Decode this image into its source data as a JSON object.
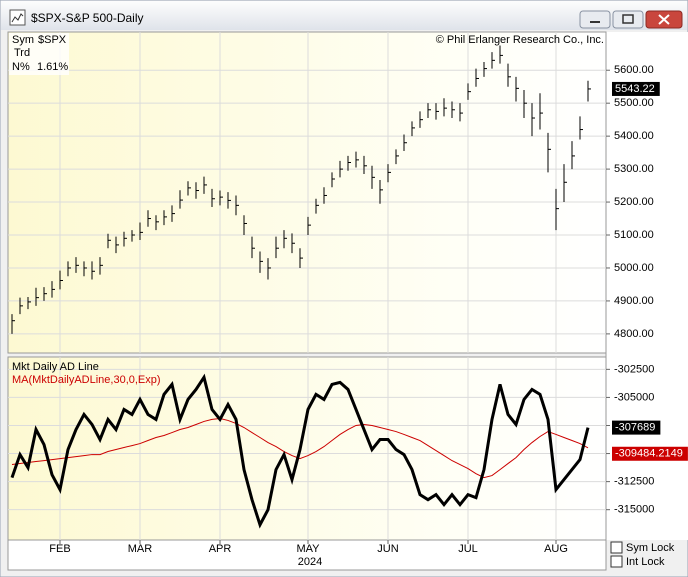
{
  "window": {
    "title": "$SPX-S&P 500-Daily",
    "copyright": "© Phil Erlanger Research Co., Inc.",
    "info": {
      "sym_label": "Sym",
      "sym": "$SPX",
      "trd_label": "Trd",
      "n_label": "N%",
      "n": "1.61%"
    },
    "year": "2024",
    "checkboxes": [
      "Sym Lock",
      "Int Lock"
    ]
  },
  "chart_data": [
    {
      "type": "hlc",
      "color": "#000000",
      "categories": [
        null,
        null,
        null,
        null,
        null,
        null,
        "FEB",
        null,
        null,
        null,
        null,
        null,
        null,
        null,
        null,
        null,
        "MAR",
        null,
        null,
        null,
        null,
        null,
        null,
        null,
        null,
        null,
        "APR",
        null,
        null,
        null,
        null,
        null,
        null,
        null,
        null,
        null,
        null,
        "MAY",
        null,
        null,
        null,
        null,
        null,
        null,
        null,
        null,
        null,
        "JUN",
        null,
        null,
        null,
        null,
        null,
        null,
        null,
        null,
        null,
        "JUL",
        null,
        null,
        null,
        null,
        null,
        null,
        null,
        null,
        null,
        null,
        "AUG",
        null,
        null,
        null,
        null
      ],
      "high": [
        4860,
        4910,
        4912,
        4940,
        4942,
        4960,
        4992,
        5020,
        5033,
        5020,
        5020,
        5033,
        5104,
        5095,
        5110,
        5115,
        5138,
        5175,
        5160,
        5175,
        5190,
        5236,
        5263,
        5260,
        5277,
        5240,
        5235,
        5230,
        5220,
        5160,
        5095,
        5050,
        5030,
        5095,
        5115,
        5105,
        5060,
        5155,
        5210,
        5245,
        5290,
        5325,
        5340,
        5353,
        5340,
        5310,
        5267,
        5315,
        5360,
        5405,
        5445,
        5475,
        5500,
        5500,
        5515,
        5505,
        5500,
        5560,
        5605,
        5625,
        5655,
        5675,
        5620,
        5580,
        5540,
        5500,
        5530,
        5410,
        5240,
        5315,
        5385,
        5460,
        5568
      ],
      "low": [
        4800,
        4860,
        4875,
        4885,
        4900,
        4910,
        4935,
        4975,
        4985,
        4975,
        4965,
        4980,
        5060,
        5045,
        5065,
        5080,
        5085,
        5125,
        5115,
        5130,
        5140,
        5180,
        5220,
        5210,
        5225,
        5185,
        5190,
        5180,
        5160,
        5100,
        5030,
        4985,
        4965,
        5030,
        5060,
        5045,
        5000,
        5100,
        5165,
        5195,
        5245,
        5275,
        5295,
        5305,
        5285,
        5240,
        5195,
        5260,
        5315,
        5355,
        5400,
        5425,
        5455,
        5450,
        5460,
        5455,
        5445,
        5510,
        5550,
        5580,
        5605,
        5620,
        5550,
        5505,
        5455,
        5400,
        5420,
        5290,
        5115,
        5200,
        5300,
        5390,
        5505
      ],
      "close": [
        4840,
        4885,
        4897,
        4910,
        4922,
        4935,
        4962,
        5000,
        5008,
        5000,
        4990,
        5008,
        5084,
        5070,
        5090,
        5100,
        5108,
        5150,
        5140,
        5155,
        5165,
        5206,
        5243,
        5235,
        5252,
        5210,
        5215,
        5205,
        5190,
        5135,
        5060,
        5020,
        5000,
        5060,
        5090,
        5075,
        5030,
        5130,
        5190,
        5220,
        5270,
        5300,
        5320,
        5328,
        5310,
        5275,
        5237,
        5290,
        5340,
        5380,
        5425,
        5450,
        5480,
        5475,
        5485,
        5480,
        5470,
        5535,
        5575,
        5605,
        5630,
        5645,
        5580,
        5545,
        5500,
        5455,
        5470,
        5360,
        5180,
        5260,
        5340,
        5420,
        5543.22
      ],
      "ylim": [
        4742,
        5716
      ],
      "yticks": [
        {
          "value": 4800,
          "label": "4800.00"
        },
        {
          "value": 4900,
          "label": "4900.00"
        },
        {
          "value": 5000,
          "label": "5000.00"
        },
        {
          "value": 5100,
          "label": "5100.00"
        },
        {
          "value": 5200,
          "label": "5200.00"
        },
        {
          "value": 5300,
          "label": "5300.00"
        },
        {
          "value": 5400,
          "label": "5400.00"
        },
        {
          "value": 5500,
          "label": "5500.00"
        },
        {
          "value": 5600,
          "label": "5600.00"
        }
      ],
      "grid": true
    },
    {
      "type": "line",
      "series": [
        {
          "name": "Mkt Daily AD Line",
          "color": "#000000",
          "values": [
            -312140,
            -310090,
            -311250,
            -307860,
            -309200,
            -311880,
            -313210,
            -309640,
            -307860,
            -306520,
            -307410,
            -308750,
            -306960,
            -307860,
            -306070,
            -306520,
            -305180,
            -306520,
            -306960,
            -304730,
            -303840,
            -306960,
            -305180,
            -304290,
            -303210,
            -306070,
            -306960,
            -305630,
            -306960,
            -311430,
            -314110,
            -316340,
            -315000,
            -311430,
            -310090,
            -312320,
            -309640,
            -306070,
            -304730,
            -305180,
            -303840,
            -303660,
            -304290,
            -306070,
            -307860,
            -309640,
            -308750,
            -308750,
            -309640,
            -310090,
            -311430,
            -313660,
            -314110,
            -313660,
            -314550,
            -313660,
            -314550,
            -313660,
            -313930,
            -311430,
            -306960,
            -303840,
            -306520,
            -307410,
            -305180,
            -304290,
            -304730,
            -306960,
            -313210,
            -312320,
            -311430,
            -310540,
            -307689
          ]
        },
        {
          "name": "MA(MktDailyADLine,30,0,Exp)",
          "color": "#cc0000",
          "values": [
            -310980,
            -310890,
            -310800,
            -310710,
            -310630,
            -310540,
            -310450,
            -310360,
            -310270,
            -310180,
            -310090,
            -310090,
            -309820,
            -309640,
            -309460,
            -309290,
            -309110,
            -308840,
            -308570,
            -308390,
            -308130,
            -307860,
            -307680,
            -307410,
            -307140,
            -306960,
            -306880,
            -307050,
            -307320,
            -307680,
            -308130,
            -308570,
            -309020,
            -309380,
            -309820,
            -310180,
            -310450,
            -310180,
            -309820,
            -309380,
            -308840,
            -308300,
            -307860,
            -307500,
            -307410,
            -307500,
            -307680,
            -307860,
            -308040,
            -308300,
            -308570,
            -308840,
            -309290,
            -309730,
            -310180,
            -310630,
            -310980,
            -311340,
            -311790,
            -312140,
            -311960,
            -311430,
            -310890,
            -310360,
            -309640,
            -309020,
            -308480,
            -308040,
            -308300,
            -308570,
            -308840,
            -309110,
            -309484.2149
          ]
        }
      ],
      "ylim": [
        -317700,
        -301400
      ],
      "yticks": [
        -315000,
        -312500,
        -310000,
        -307500,
        -305000,
        -302500
      ],
      "grid": true
    }
  ]
}
